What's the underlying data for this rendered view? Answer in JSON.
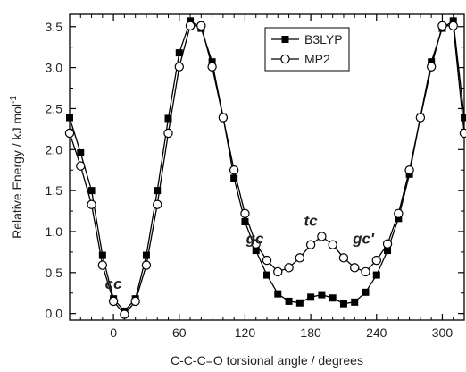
{
  "chart_data": {
    "type": "line",
    "title": "",
    "xlabel": "C-C-C=O torsional angle / degrees",
    "ylabel": "Relative Energy / kJ mol",
    "ylabel_superscript": "-1",
    "xlim": [
      -40,
      320
    ],
    "ylim": [
      -0.08,
      3.65
    ],
    "xticks": [
      0,
      60,
      120,
      180,
      240,
      300
    ],
    "yticks": [
      0.0,
      0.5,
      1.0,
      1.5,
      2.0,
      2.5,
      3.0,
      3.5
    ],
    "ytick_labels": [
      "0.0",
      "0.5",
      "1.0",
      "1.5",
      "2.0",
      "2.5",
      "3.0",
      "3.5"
    ],
    "grid": false,
    "legend_position": "top-center",
    "series": [
      {
        "name": "B3LYP",
        "marker": "filled-square",
        "color": "#000000",
        "x": [
          -40,
          -30,
          -20,
          -10,
          0,
          10,
          20,
          30,
          40,
          50,
          60,
          70,
          80,
          90,
          100,
          110,
          120,
          130,
          140,
          150,
          160,
          170,
          180,
          190,
          200,
          210,
          220,
          230,
          240,
          250,
          260,
          270,
          280,
          290,
          300,
          310,
          320
        ],
        "y": [
          2.39,
          1.96,
          1.5,
          0.71,
          0.18,
          0.03,
          0.18,
          0.71,
          1.5,
          2.38,
          3.18,
          3.57,
          3.48,
          3.07,
          2.4,
          1.65,
          1.12,
          0.77,
          0.47,
          0.24,
          0.15,
          0.13,
          0.2,
          0.23,
          0.19,
          0.12,
          0.14,
          0.26,
          0.47,
          0.77,
          1.16,
          1.7,
          2.4,
          3.07,
          3.48,
          3.57,
          2.39
        ]
      },
      {
        "name": "MP2",
        "marker": "open-circle",
        "color": "#000000",
        "x": [
          -40,
          -30,
          -20,
          -10,
          0,
          10,
          20,
          30,
          40,
          50,
          60,
          70,
          80,
          90,
          100,
          110,
          120,
          130,
          140,
          150,
          160,
          170,
          180,
          190,
          200,
          210,
          220,
          230,
          240,
          250,
          260,
          270,
          280,
          290,
          300,
          310,
          320
        ],
        "y": [
          2.2,
          1.8,
          1.33,
          0.59,
          0.15,
          -0.01,
          0.15,
          0.59,
          1.33,
          2.2,
          3.01,
          3.51,
          3.51,
          3.01,
          2.39,
          1.75,
          1.22,
          0.85,
          0.65,
          0.51,
          0.56,
          0.68,
          0.84,
          0.94,
          0.84,
          0.68,
          0.56,
          0.51,
          0.65,
          0.85,
          1.22,
          1.75,
          2.39,
          3.01,
          3.51,
          3.51,
          2.2
        ]
      }
    ],
    "annotations": [
      {
        "text": "cc",
        "x": 0,
        "y": 0.3
      },
      {
        "text": "gc",
        "x": 129,
        "y": 0.85
      },
      {
        "text": "tc",
        "x": 180,
        "y": 1.07
      },
      {
        "text": "gc'",
        "x": 228,
        "y": 0.85
      }
    ]
  }
}
